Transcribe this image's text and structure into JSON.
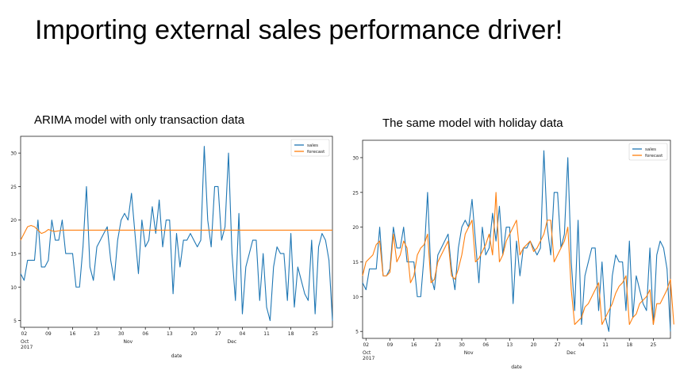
{
  "slide_title": "Importing external sales performance driver!",
  "chart_data": [
    {
      "type": "line",
      "title": "ARIMA model with only transaction data",
      "xlabel": "date",
      "ylabel": "",
      "x_start": "2017-10-01",
      "ylim": [
        4,
        32.5
      ],
      "yticks": [
        "5",
        "10",
        "15",
        "20",
        "25",
        "30"
      ],
      "xticks": [
        "02",
        "09",
        "16",
        "23",
        "30",
        "06",
        "13",
        "20",
        "27",
        "04",
        "11",
        "18",
        "25"
      ],
      "month_labels": [
        {
          "text": "Oct",
          "sub": "2017",
          "date": "2017-10-01"
        },
        {
          "text": "Nov",
          "date": "2017-11-01"
        },
        {
          "text": "Dec",
          "date": "2017-12-01"
        }
      ],
      "legend": {
        "position": "top-right",
        "entries": [
          "sales",
          "forecast"
        ]
      },
      "colors": {
        "sales": "#1f77b4",
        "forecast": "#ff7f0e"
      },
      "series": [
        {
          "name": "sales",
          "values": [
            12,
            11,
            14,
            14,
            14,
            20,
            13,
            13,
            14,
            20,
            17,
            17,
            20,
            15,
            15,
            15,
            10,
            10,
            16,
            25,
            13,
            11,
            16,
            17,
            18,
            19,
            14,
            11,
            17,
            20,
            21,
            20,
            24,
            18,
            12,
            20,
            16,
            17,
            22,
            18,
            23,
            16,
            20,
            20,
            9,
            18,
            13,
            17,
            17,
            18,
            17,
            16,
            17,
            31,
            20,
            16,
            25,
            25,
            17,
            19,
            30,
            15,
            8,
            21,
            6,
            13,
            15,
            17,
            17,
            8,
            15,
            7,
            5,
            13,
            16,
            15,
            15,
            8,
            18,
            7,
            13,
            11,
            9,
            8,
            17,
            6,
            16,
            18,
            17,
            14,
            5
          ]
        },
        {
          "name": "forecast",
          "values": [
            17,
            18,
            19,
            19.2,
            19,
            18.5,
            18,
            18.2,
            18.6,
            18.4,
            18.3,
            18.4,
            18.5,
            18.5,
            18.5,
            18.5,
            18.5,
            18.5,
            18.5,
            18.5,
            18.5,
            18.5,
            18.5,
            18.5,
            18.5,
            18.5,
            18.5,
            18.5,
            18.5,
            18.5,
            18.5,
            18.5,
            18.5,
            18.5,
            18.5,
            18.5,
            18.5,
            18.5,
            18.5,
            18.5,
            18.5,
            18.5,
            18.5,
            18.5,
            18.5,
            18.5,
            18.5,
            18.5,
            18.5,
            18.5,
            18.5,
            18.5,
            18.5,
            18.5,
            18.5,
            18.5,
            18.5,
            18.5,
            18.5,
            18.5,
            18.5,
            18.5,
            18.5,
            18.5,
            18.5,
            18.5,
            18.5,
            18.5,
            18.5,
            18.5,
            18.5,
            18.5,
            18.5,
            18.5,
            18.5,
            18.5,
            18.5,
            18.5,
            18.5,
            18.5,
            18.5,
            18.5,
            18.5,
            18.5,
            18.5,
            18.5,
            18.5,
            18.5,
            18.5,
            18.5,
            18.5
          ]
        }
      ]
    },
    {
      "type": "line",
      "title": "The same model with holiday data",
      "xlabel": "date",
      "ylabel": "",
      "x_start": "2017-10-01",
      "ylim": [
        4,
        32.5
      ],
      "yticks": [
        "5",
        "10",
        "15",
        "20",
        "25",
        "30"
      ],
      "xticks": [
        "02",
        "09",
        "16",
        "23",
        "30",
        "06",
        "13",
        "20",
        "27",
        "04",
        "11",
        "18",
        "25"
      ],
      "month_labels": [
        {
          "text": "Oct",
          "sub": "2017",
          "date": "2017-10-01"
        },
        {
          "text": "Nov",
          "date": "2017-11-01"
        },
        {
          "text": "Dec",
          "date": "2017-12-01"
        }
      ],
      "legend": {
        "position": "top-right",
        "entries": [
          "sales",
          "forecast"
        ]
      },
      "colors": {
        "sales": "#1f77b4",
        "forecast": "#ff7f0e"
      },
      "series": [
        {
          "name": "sales",
          "values": [
            12,
            11,
            14,
            14,
            14,
            20,
            13,
            13,
            14,
            20,
            17,
            17,
            20,
            15,
            15,
            15,
            10,
            10,
            16,
            25,
            13,
            11,
            16,
            17,
            18,
            19,
            14,
            11,
            17,
            20,
            21,
            20,
            24,
            18,
            12,
            20,
            16,
            17,
            22,
            18,
            23,
            16,
            20,
            20,
            9,
            18,
            13,
            17,
            17,
            18,
            17,
            16,
            17,
            31,
            20,
            16,
            25,
            25,
            17,
            19,
            30,
            15,
            8,
            21,
            6,
            13,
            15,
            17,
            17,
            8,
            15,
            7,
            5,
            13,
            16,
            15,
            15,
            8,
            18,
            7,
            13,
            11,
            9,
            8,
            17,
            6,
            16,
            18,
            17,
            14,
            5
          ]
        },
        {
          "name": "forecast",
          "values": [
            13,
            15,
            15.5,
            16,
            17.5,
            18,
            13,
            13,
            13.5,
            19,
            15,
            16,
            18,
            17,
            12,
            13,
            16,
            17,
            17.5,
            19,
            12,
            12.5,
            15,
            16,
            17,
            18,
            13,
            12.5,
            14,
            16,
            19,
            20,
            21,
            15,
            15.5,
            16.5,
            17.5,
            19,
            16,
            25,
            15,
            16,
            18,
            19,
            20,
            21,
            16,
            17,
            17.5,
            18,
            16.5,
            17,
            18,
            19,
            21,
            21,
            15,
            16,
            17,
            18,
            20,
            11,
            6,
            6.5,
            7,
            8.5,
            9,
            10,
            11,
            12,
            6,
            7,
            8,
            9,
            10.5,
            11.5,
            12,
            13,
            6,
            7,
            7.5,
            9,
            9.5,
            10,
            11,
            6,
            9,
            9,
            10,
            11,
            12.5,
            6
          ]
        }
      ]
    }
  ]
}
